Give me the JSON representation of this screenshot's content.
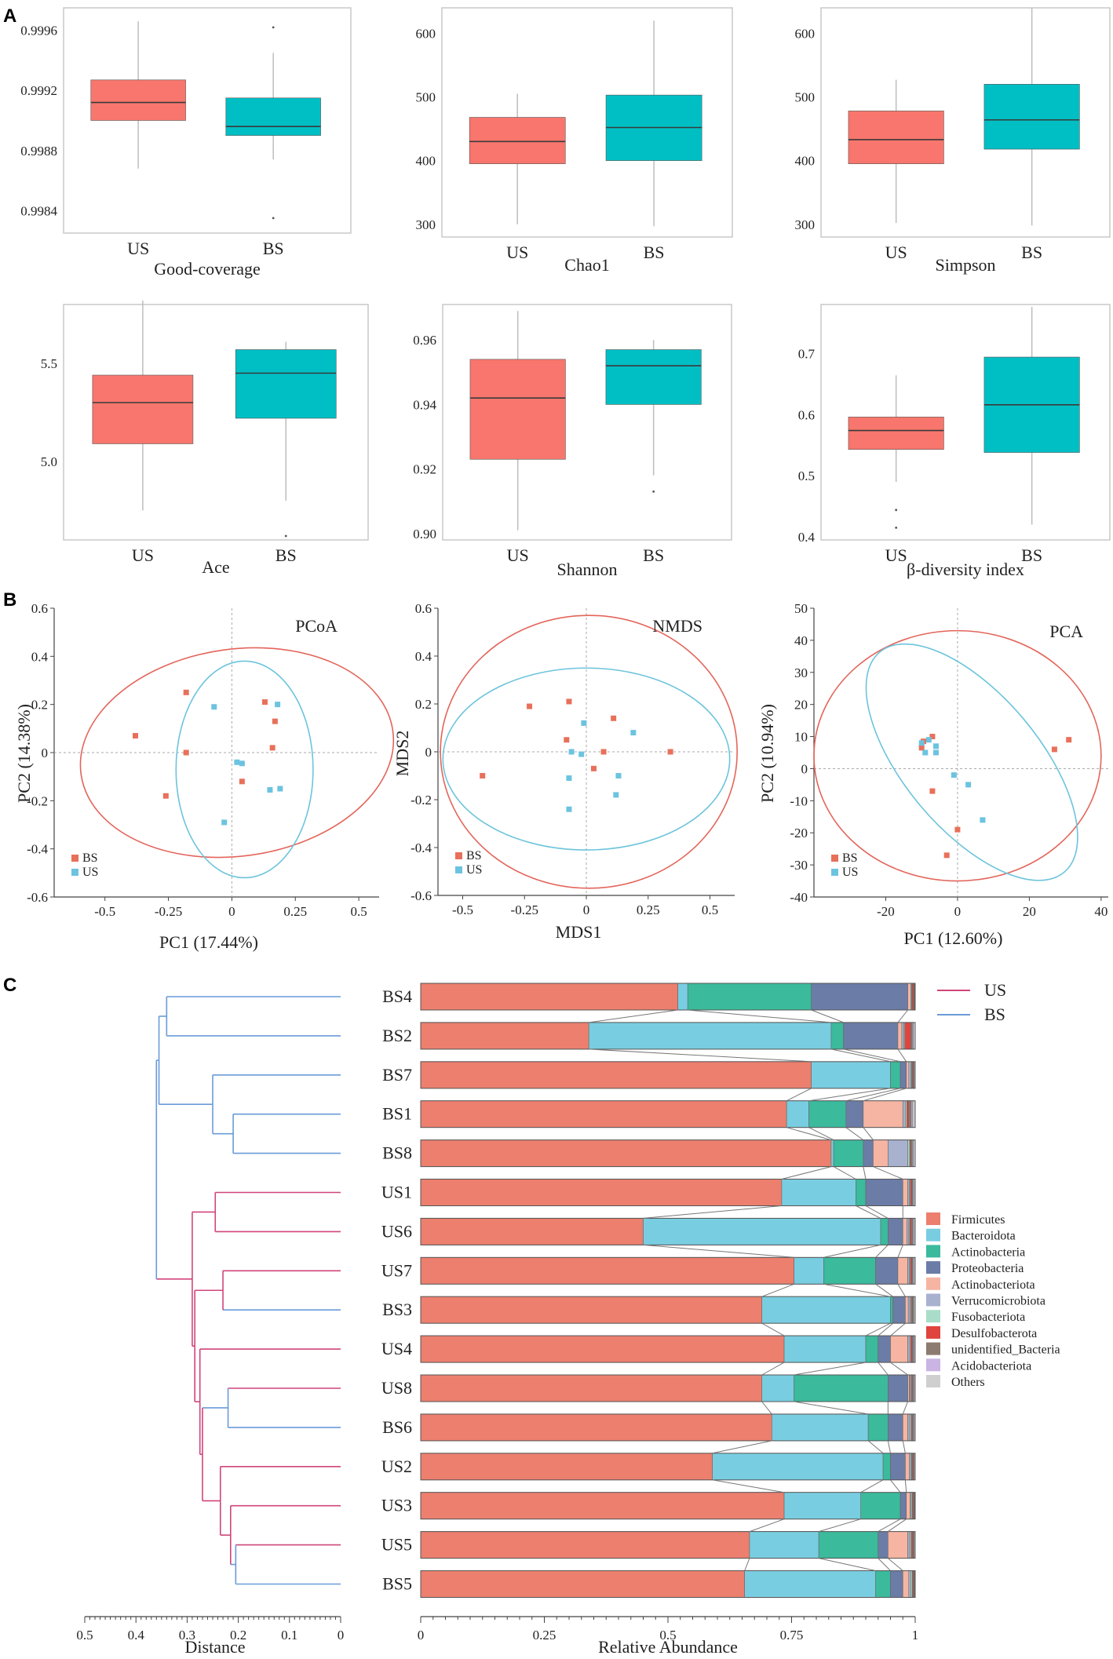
{
  "panel_labels": {
    "a": "A",
    "b": "B",
    "c": "C"
  },
  "colors": {
    "US": "#F8766D",
    "BS": "#00BFC4",
    "US_point": "#E8705A",
    "BS_point": "#6CC3E0",
    "US_ellipse": "#E3655A",
    "BS_ellipse": "#6CC4DC",
    "tree_US": "#D0457A",
    "tree_BS": "#6A9BD8",
    "label_US": "#D0457A",
    "label_BS": "#7A8FB8"
  },
  "chart_data": [
    {
      "type": "box",
      "id": "good",
      "title": "Good-coverage",
      "categories": [
        "US",
        "BS"
      ],
      "ylim": [
        0.99825,
        0.99975
      ],
      "yticks": [
        "0.9984",
        "0.9988",
        "0.9992",
        "0.9996"
      ],
      "ytick_values": [
        0.9984,
        0.9988,
        0.9992,
        0.9996
      ],
      "boxes": [
        {
          "name": "US",
          "lower": 0.99868,
          "q1": 0.999,
          "median": 0.99912,
          "q3": 0.99927,
          "upper": 0.99966,
          "outliers": []
        },
        {
          "name": "BS",
          "lower": 0.99874,
          "q1": 0.9989,
          "median": 0.99896,
          "q3": 0.99915,
          "upper": 0.99945,
          "outliers": [
            0.99835,
            0.99962
          ]
        }
      ]
    },
    {
      "type": "box",
      "id": "chao1",
      "title": "Chao1",
      "categories": [
        "US",
        "BS"
      ],
      "ylim": [
        280,
        640
      ],
      "yticks": [
        "300",
        "400",
        "500",
        "600"
      ],
      "ytick_values": [
        300,
        400,
        500,
        600
      ],
      "boxes": [
        {
          "name": "US",
          "lower": 300,
          "q1": 395,
          "median": 430,
          "q3": 468,
          "upper": 505,
          "outliers": []
        },
        {
          "name": "BS",
          "lower": 297,
          "q1": 400,
          "median": 452,
          "q3": 503,
          "upper": 620,
          "outliers": []
        }
      ]
    },
    {
      "type": "box",
      "id": "simpson",
      "title": "Simpson",
      "categories": [
        "US",
        "BS"
      ],
      "ylim": [
        280,
        640
      ],
      "yticks": [
        "300",
        "400",
        "500",
        "600"
      ],
      "ytick_values": [
        300,
        400,
        500,
        600
      ],
      "boxes": [
        {
          "name": "US",
          "lower": 302,
          "q1": 395,
          "median": 433,
          "q3": 478,
          "upper": 527,
          "outliers": []
        },
        {
          "name": "BS",
          "lower": 298,
          "q1": 418,
          "median": 464,
          "q3": 520,
          "upper": 640,
          "outliers": []
        }
      ]
    },
    {
      "type": "box",
      "id": "ace",
      "title": "Ace",
      "categories": [
        "US",
        "BS"
      ],
      "ylim": [
        4.6,
        5.8
      ],
      "yticks": [
        "5.0",
        "5.5"
      ],
      "ytick_values": [
        5.0,
        5.5
      ],
      "boxes": [
        {
          "name": "US",
          "lower": 4.75,
          "q1": 5.09,
          "median": 5.3,
          "q3": 5.44,
          "upper": 5.82,
          "outliers": []
        },
        {
          "name": "BS",
          "lower": 4.8,
          "q1": 5.22,
          "median": 5.45,
          "q3": 5.57,
          "upper": 5.61,
          "outliers": [
            4.62
          ]
        }
      ]
    },
    {
      "type": "box",
      "id": "shannon",
      "title": "Shannon",
      "categories": [
        "US",
        "BS"
      ],
      "ylim": [
        0.898,
        0.971
      ],
      "yticks": [
        "0.90",
        "0.92",
        "0.94",
        "0.96"
      ],
      "ytick_values": [
        0.9,
        0.92,
        0.94,
        0.96
      ],
      "boxes": [
        {
          "name": "US",
          "lower": 0.901,
          "q1": 0.923,
          "median": 0.942,
          "q3": 0.954,
          "upper": 0.969,
          "outliers": []
        },
        {
          "name": "BS",
          "lower": 0.918,
          "q1": 0.94,
          "median": 0.952,
          "q3": 0.957,
          "upper": 0.96,
          "outliers": [
            0.913
          ]
        }
      ]
    },
    {
      "type": "box",
      "id": "beta",
      "title": "β-diversity index",
      "categories": [
        "US",
        "BS"
      ],
      "ylim": [
        0.395,
        0.78
      ],
      "yticks": [
        "0.4",
        "0.5",
        "0.6",
        "0.7"
      ],
      "ytick_values": [
        0.4,
        0.5,
        0.6,
        0.7
      ],
      "boxes": [
        {
          "name": "US",
          "lower": 0.49,
          "q1": 0.543,
          "median": 0.574,
          "q3": 0.596,
          "upper": 0.664,
          "outliers": [
            0.444,
            0.415
          ]
        },
        {
          "name": "BS",
          "lower": 0.42,
          "q1": 0.538,
          "median": 0.616,
          "q3": 0.694,
          "upper": 0.776,
          "outliers": []
        }
      ]
    },
    {
      "type": "scatter",
      "id": "pcoa",
      "title": "PCoA",
      "xlabel": "PC1 (17.44%)",
      "ylabel": "PC2 (14.38%)",
      "xlim": [
        -0.7,
        0.58
      ],
      "ylim": [
        -0.6,
        0.6
      ],
      "xticks": [
        "-0.5",
        "-0.25",
        "0",
        "0.25",
        "0.5"
      ],
      "xtick_values": [
        -0.5,
        -0.25,
        0,
        0.25,
        0.5
      ],
      "yticks": [
        "-0.6",
        "-0.4",
        "-0.2",
        "0",
        "0.2",
        "0.4",
        "0.6"
      ],
      "ytick_values": [
        -0.6,
        -0.4,
        -0.2,
        0,
        0.2,
        0.4,
        0.6
      ],
      "legend": [
        "BS",
        "US"
      ],
      "points_red": [
        [
          -0.38,
          0.07
        ],
        [
          -0.18,
          0.25
        ],
        [
          -0.18,
          0.0
        ],
        [
          -0.26,
          -0.18
        ],
        [
          0.13,
          0.21
        ],
        [
          0.17,
          0.13
        ],
        [
          0.16,
          0.02
        ],
        [
          0.04,
          -0.12
        ]
      ],
      "points_cyan": [
        [
          -0.07,
          0.19
        ],
        [
          0.02,
          -0.04
        ],
        [
          0.04,
          -0.045
        ],
        [
          0.18,
          0.2
        ],
        [
          0.19,
          -0.15
        ],
        [
          0.15,
          -0.155
        ],
        [
          -0.03,
          -0.29
        ]
      ],
      "ellipse_red": {
        "cx": 0.02,
        "cy": 0.0,
        "rx": 0.62,
        "ry": 0.43,
        "angle": -8
      },
      "ellipse_cyan": {
        "cx": 0.05,
        "cy": -0.07,
        "rx": 0.27,
        "ry": 0.45,
        "angle": 0
      }
    },
    {
      "type": "scatter",
      "id": "nmds",
      "title": "NMDS",
      "xlabel": "MDS1",
      "ylabel": "MDS2",
      "xlim": [
        -0.6,
        0.6
      ],
      "ylim": [
        -0.6,
        0.6
      ],
      "xticks": [
        "-0.5",
        "-0.25",
        "0",
        "0.25",
        "0.5"
      ],
      "xtick_values": [
        -0.5,
        -0.25,
        0,
        0.25,
        0.5
      ],
      "yticks": [
        "-0.6",
        "-0.4",
        "-0.2",
        "0",
        "0.2",
        "0.4",
        "0.6"
      ],
      "ytick_values": [
        -0.6,
        -0.4,
        -0.2,
        0,
        0.2,
        0.4,
        0.6
      ],
      "legend": [
        "BS",
        "US"
      ],
      "points_red": [
        [
          -0.42,
          -0.1
        ],
        [
          -0.23,
          0.19
        ],
        [
          -0.08,
          0.05
        ],
        [
          -0.07,
          0.21
        ],
        [
          0.03,
          -0.07
        ],
        [
          0.07,
          0.0
        ],
        [
          0.11,
          0.14
        ],
        [
          0.34,
          0.0
        ]
      ],
      "points_cyan": [
        [
          -0.07,
          -0.24
        ],
        [
          -0.07,
          -0.11
        ],
        [
          -0.06,
          0.0
        ],
        [
          -0.02,
          -0.01
        ],
        [
          -0.01,
          0.12
        ],
        [
          0.12,
          -0.18
        ],
        [
          0.13,
          -0.1
        ],
        [
          0.19,
          0.08
        ]
      ],
      "ellipse_red": {
        "cx": 0.01,
        "cy": 0.0,
        "rx": 0.6,
        "ry": 0.57,
        "angle": 0
      },
      "ellipse_cyan": {
        "cx": 0.0,
        "cy": -0.03,
        "rx": 0.58,
        "ry": 0.38,
        "angle": 0
      }
    },
    {
      "type": "scatter",
      "id": "pca",
      "title": "PCA",
      "xlabel": "PC1 (12.60%)",
      "ylabel": "PC2 (10.94%)",
      "xlim": [
        -40,
        42
      ],
      "ylim": [
        -40,
        50
      ],
      "xticks": [
        "-20",
        "0",
        "20",
        "40"
      ],
      "xtick_values": [
        -20,
        0,
        20,
        40
      ],
      "yticks": [
        "-40",
        "-30",
        "-20",
        "-10",
        "0",
        "10",
        "20",
        "30",
        "40",
        "50"
      ],
      "ytick_values": [
        -40,
        -30,
        -20,
        -10,
        0,
        10,
        20,
        30,
        40,
        50
      ],
      "legend": [
        "BS",
        "US"
      ],
      "points_red": [
        [
          -10,
          6.5
        ],
        [
          -9.5,
          8.5
        ],
        [
          -7,
          10
        ],
        [
          -7,
          -7
        ],
        [
          0,
          -19
        ],
        [
          -3,
          -27
        ],
        [
          27,
          6
        ],
        [
          31,
          9
        ]
      ],
      "points_cyan": [
        [
          -10,
          8
        ],
        [
          -9,
          5
        ],
        [
          -8,
          9
        ],
        [
          -6,
          5
        ],
        [
          -6,
          7
        ],
        [
          -1,
          -2
        ],
        [
          3,
          -5
        ],
        [
          7,
          -16
        ]
      ],
      "ellipse_red": {
        "cx": 0,
        "cy": 4,
        "rx": 40,
        "ry": 39,
        "angle": 0
      },
      "ellipse_cyan": {
        "cx": 4,
        "cy": 2,
        "rx": 40,
        "ry": 21,
        "angle": 50
      }
    },
    {
      "type": "stacked-bar",
      "id": "abundance",
      "xlabel": "Relative Abundance",
      "xlim": [
        0,
        1
      ],
      "xticks": [
        "0",
        "0.25",
        "0.5",
        "0.75",
        "1"
      ],
      "xtick_values": [
        0,
        0.25,
        0.5,
        0.75,
        1
      ],
      "distance_label": "Distance",
      "distance_ticks": [
        "0.5",
        "0.4",
        "0.3",
        "0.2",
        "0.1",
        "0"
      ],
      "distance_tick_values": [
        0.5,
        0.4,
        0.3,
        0.2,
        0.1,
        0
      ],
      "tree_legend": [
        {
          "name": "US",
          "color": "#D0457A"
        },
        {
          "name": "BS",
          "color": "#6A9BD8"
        }
      ],
      "taxa": [
        {
          "name": "Firmicutes",
          "color": "#EC7F6E"
        },
        {
          "name": "Bacteroidota",
          "color": "#79CDE0"
        },
        {
          "name": "Actinobacteria",
          "color": "#3BBA9C"
        },
        {
          "name": "Proteobacteria",
          "color": "#6B7CA6"
        },
        {
          "name": "Actinobacteriota",
          "color": "#F5B5A2"
        },
        {
          "name": "Verrucomicrobiota",
          "color": "#A8B2CF"
        },
        {
          "name": "Fusobacteriota",
          "color": "#A9DDC9"
        },
        {
          "name": "Desulfobacterota",
          "color": "#E0443E"
        },
        {
          "name": "unidentified_Bacteria",
          "color": "#8C7B6E"
        },
        {
          "name": "Acidobacteriota",
          "color": "#C9B4E3"
        },
        {
          "name": "Others",
          "color": "#CFCFCF"
        }
      ],
      "samples": [
        {
          "name": "BS4",
          "group": "BS",
          "values": [
            0.52,
            0.02,
            0.25,
            0.195,
            0.006,
            0.002,
            0.001,
            0.003,
            0.001,
            0.001,
            0.001
          ]
        },
        {
          "name": "BS2",
          "group": "BS",
          "values": [
            0.34,
            0.49,
            0.025,
            0.11,
            0.008,
            0.004,
            0.002,
            0.012,
            0.003,
            0.002,
            0.004
          ]
        },
        {
          "name": "BS7",
          "group": "BS",
          "values": [
            0.79,
            0.16,
            0.02,
            0.012,
            0.005,
            0.004,
            0.002,
            0.002,
            0.002,
            0.001,
            0.002
          ]
        },
        {
          "name": "BS1",
          "group": "BS",
          "values": [
            0.74,
            0.045,
            0.075,
            0.035,
            0.08,
            0.005,
            0.003,
            0.004,
            0.005,
            0.003,
            0.005
          ]
        },
        {
          "name": "BS8",
          "group": "BS",
          "values": [
            0.83,
            0.005,
            0.06,
            0.02,
            0.03,
            0.04,
            0.004,
            0.002,
            0.003,
            0.002,
            0.004
          ]
        },
        {
          "name": "US1",
          "group": "US",
          "values": [
            0.73,
            0.15,
            0.02,
            0.075,
            0.01,
            0.003,
            0.002,
            0.003,
            0.002,
            0.002,
            0.003
          ]
        },
        {
          "name": "US6",
          "group": "US",
          "values": [
            0.45,
            0.48,
            0.015,
            0.03,
            0.008,
            0.004,
            0.002,
            0.003,
            0.003,
            0.002,
            0.003
          ]
        },
        {
          "name": "US7",
          "group": "US",
          "values": [
            0.755,
            0.06,
            0.105,
            0.045,
            0.02,
            0.003,
            0.002,
            0.003,
            0.002,
            0.002,
            0.003
          ]
        },
        {
          "name": "BS3",
          "group": "BS",
          "values": [
            0.69,
            0.26,
            0.005,
            0.025,
            0.006,
            0.004,
            0.002,
            0.002,
            0.002,
            0.001,
            0.003
          ]
        },
        {
          "name": "US4",
          "group": "US",
          "values": [
            0.735,
            0.165,
            0.025,
            0.025,
            0.035,
            0.004,
            0.002,
            0.003,
            0.002,
            0.002,
            0.002
          ]
        },
        {
          "name": "US8",
          "group": "US",
          "values": [
            0.69,
            0.065,
            0.19,
            0.04,
            0.003,
            0.002,
            0.002,
            0.002,
            0.002,
            0.002,
            0.002
          ]
        },
        {
          "name": "BS6",
          "group": "BS",
          "values": [
            0.71,
            0.195,
            0.04,
            0.03,
            0.01,
            0.004,
            0.003,
            0.002,
            0.002,
            0.002,
            0.002
          ]
        },
        {
          "name": "US2",
          "group": "US",
          "values": [
            0.59,
            0.345,
            0.015,
            0.03,
            0.008,
            0.003,
            0.002,
            0.002,
            0.002,
            0.001,
            0.002
          ]
        },
        {
          "name": "US3",
          "group": "US",
          "values": [
            0.735,
            0.155,
            0.08,
            0.012,
            0.008,
            0.002,
            0.002,
            0.002,
            0.002,
            0.001,
            0.001
          ]
        },
        {
          "name": "US5",
          "group": "US",
          "values": [
            0.665,
            0.14,
            0.12,
            0.02,
            0.04,
            0.004,
            0.003,
            0.003,
            0.002,
            0.001,
            0.002
          ]
        },
        {
          "name": "BS5",
          "group": "BS",
          "values": [
            0.655,
            0.265,
            0.03,
            0.025,
            0.012,
            0.004,
            0.003,
            0.002,
            0.002,
            0.001,
            0.001
          ]
        }
      ]
    }
  ]
}
